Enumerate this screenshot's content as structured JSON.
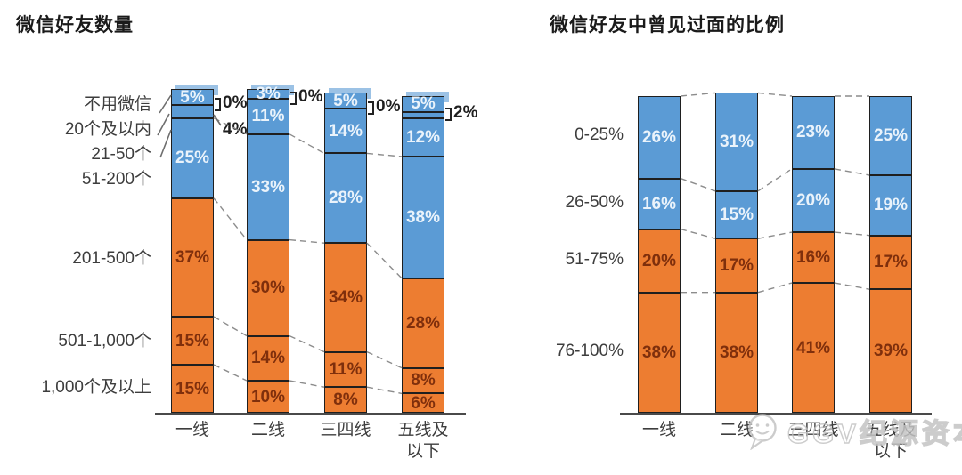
{
  "titles": {
    "left": "微信好友数量",
    "right": "微信好友中曾见过面的比例"
  },
  "watermark": {
    "text": "GGV纪源资本",
    "icon": "wechat-smiley-icon"
  },
  "colors": {
    "blue": "#5B9BD5",
    "orange": "#ED7D31",
    "blue_label": "#EAF3FB",
    "orange_label": "#7F2F0C",
    "bar_border": "#1f1f1f",
    "axis": "#4a4a4a",
    "dash": "#8c8c8c",
    "leader": "#6e6e6e",
    "cap": "#9CC2E5",
    "text": "#262626",
    "watermark": "#c4c4c4"
  },
  "chart_data": [
    {
      "type": "bar",
      "stacked": true,
      "title": "微信好友数量",
      "unit": "%",
      "categories": [
        "一线",
        "二线",
        "三四线",
        "五线及以下"
      ],
      "series": [
        {
          "name": "不用微信",
          "color": "blue",
          "values": [
            5,
            3,
            5,
            5
          ],
          "label_pos": [
            "in",
            "in",
            "in",
            "in"
          ]
        },
        {
          "name": "20个及以内",
          "color": "blue",
          "values": [
            0,
            0,
            0,
            2
          ],
          "label_pos": [
            "out",
            "out",
            "out",
            "out"
          ]
        },
        {
          "name": "21-50个",
          "color": "blue",
          "values": [
            4,
            11,
            14,
            12
          ],
          "label_pos": [
            "out",
            "in",
            "in",
            "in"
          ]
        },
        {
          "name": "51-200个",
          "color": "blue",
          "values": [
            25,
            33,
            28,
            38
          ],
          "label_pos": [
            "in",
            "in",
            "in",
            "in"
          ]
        },
        {
          "name": "201-500个",
          "color": "orange",
          "values": [
            37,
            30,
            34,
            28
          ],
          "label_pos": [
            "in",
            "in",
            "in",
            "in"
          ]
        },
        {
          "name": "501-1,000个",
          "color": "orange",
          "values": [
            15,
            14,
            11,
            8
          ],
          "label_pos": [
            "in",
            "in",
            "in",
            "in"
          ]
        },
        {
          "name": "1,000个及以上",
          "color": "orange",
          "values": [
            15,
            10,
            8,
            6
          ],
          "label_pos": [
            "in",
            "in",
            "in",
            "in"
          ]
        }
      ],
      "ylim": [
        0,
        100
      ],
      "grid": false,
      "legend": false
    },
    {
      "type": "bar",
      "stacked": true,
      "title": "微信好友中曾见过面的比例",
      "unit": "%",
      "categories": [
        "一线",
        "二线",
        "三四线",
        "五线及以下"
      ],
      "series": [
        {
          "name": "0-25%",
          "color": "blue",
          "values": [
            26,
            31,
            23,
            25
          ],
          "label_pos": [
            "in",
            "in",
            "in",
            "in"
          ]
        },
        {
          "name": "26-50%",
          "color": "blue",
          "values": [
            16,
            15,
            20,
            19
          ],
          "label_pos": [
            "in",
            "in",
            "in",
            "in"
          ]
        },
        {
          "name": "51-75%",
          "color": "orange",
          "values": [
            20,
            17,
            16,
            17
          ],
          "label_pos": [
            "in",
            "in",
            "in",
            "in"
          ]
        },
        {
          "name": "76-100%",
          "color": "orange",
          "values": [
            38,
            38,
            41,
            39
          ],
          "label_pos": [
            "in",
            "in",
            "in",
            "in"
          ]
        }
      ],
      "ylim": [
        0,
        100
      ],
      "grid": false,
      "legend": false
    }
  ]
}
